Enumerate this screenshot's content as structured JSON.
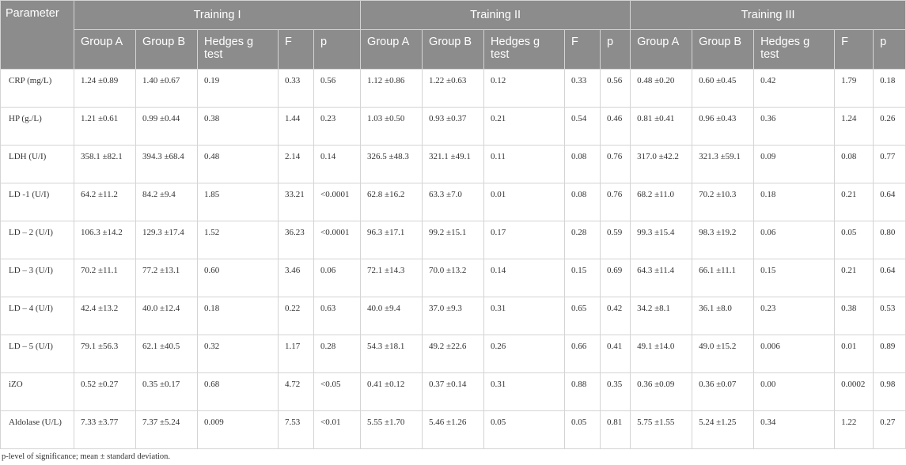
{
  "table": {
    "param_header": "Parameter",
    "groups": [
      "Training I",
      "Training II",
      "Training III"
    ],
    "subheaders": [
      "Group A",
      "Group B",
      "Hedges g test",
      "F",
      "p"
    ],
    "rows": [
      {
        "param": "CRP (mg/L)",
        "cells": [
          [
            "1.24 ±0.89",
            "1.40 ±0.67",
            "0.19",
            "0.33",
            "0.56"
          ],
          [
            "1.12 ±0.86",
            "1.22 ±0.63",
            "0.12",
            "0.33",
            "0.56"
          ],
          [
            "0.48 ±0.20",
            "0.60 ±0.45",
            "0.42",
            "1.79",
            "0.18"
          ]
        ]
      },
      {
        "param": "HP (g./L)",
        "cells": [
          [
            "1.21 ±0.61",
            "0.99 ±0.44",
            "0.38",
            "1.44",
            "0.23"
          ],
          [
            "1.03 ±0.50",
            "0.93 ±0.37",
            "0.21",
            "0.54",
            "0.46"
          ],
          [
            "0.81 ±0.41",
            "0.96 ±0.43",
            "0.36",
            "1.24",
            "0.26"
          ]
        ]
      },
      {
        "param": "LDH (U/I)",
        "cells": [
          [
            "358.1 ±82.1",
            "394.3 ±68.4",
            "0.48",
            "2.14",
            "0.14"
          ],
          [
            "326.5 ±48.3",
            "321.1 ±49.1",
            "0.11",
            "0.08",
            "0.76"
          ],
          [
            "317.0 ±42.2",
            "321.3 ±59.1",
            "0.09",
            "0.08",
            "0.77"
          ]
        ]
      },
      {
        "param": "LD -1 (U/I)",
        "cells": [
          [
            "64.2 ±11.2",
            "84.2 ±9.4",
            "1.85",
            "33.21",
            "<0.0001"
          ],
          [
            "62.8 ±16.2",
            "63.3 ±7.0",
            "0.01",
            "0.08",
            "0.76"
          ],
          [
            "68.2 ±11.0",
            "70.2 ±10.3",
            "0.18",
            "0.21",
            "0.64"
          ]
        ]
      },
      {
        "param": "LD – 2 (U/I)",
        "cells": [
          [
            "106.3 ±14.2",
            "129.3 ±17.4",
            "1.52",
            "36.23",
            "<0.0001"
          ],
          [
            "96.3 ±17.1",
            "99.2 ±15.1",
            "0.17",
            "0.28",
            "0.59"
          ],
          [
            "99.3 ±15.4",
            "98.3 ±19.2",
            "0.06",
            "0.05",
            "0.80"
          ]
        ]
      },
      {
        "param": "LD – 3 (U/I)",
        "cells": [
          [
            "70.2 ±11.1",
            "77.2 ±13.1",
            "0.60",
            "3.46",
            "0.06"
          ],
          [
            "72.1 ±14.3",
            "70.0 ±13.2",
            "0.14",
            "0.15",
            "0.69"
          ],
          [
            "64.3 ±11.4",
            "66.1 ±11.1",
            "0.15",
            "0.21",
            "0.64"
          ]
        ]
      },
      {
        "param": "LD – 4 (U/I)",
        "cells": [
          [
            "42.4 ±13.2",
            "40.0 ±12.4",
            "0.18",
            "0.22",
            "0.63"
          ],
          [
            "40.0 ±9.4",
            "37.0 ±9.3",
            "0.31",
            "0.65",
            "0.42"
          ],
          [
            "34.2 ±8.1",
            "36.1 ±8.0",
            "0.23",
            "0.38",
            "0.53"
          ]
        ]
      },
      {
        "param": "LD – 5 (U/I)",
        "cells": [
          [
            "79.1 ±56.3",
            "62.1 ±40.5",
            "0.32",
            "1.17",
            "0.28"
          ],
          [
            "54.3 ±18.1",
            "49.2 ±22.6",
            "0.26",
            "0.66",
            "0.41"
          ],
          [
            "49.1 ±14.0",
            "49.0 ±15.2",
            "0.006",
            "0.01",
            "0.89"
          ]
        ]
      },
      {
        "param": "iZO",
        "cells": [
          [
            "0.52 ±0.27",
            "0.35 ±0.17",
            "0.68",
            "4.72",
            "<0.05"
          ],
          [
            "0.41 ±0.12",
            "0.37 ±0.14",
            "0.31",
            "0.88",
            "0.35"
          ],
          [
            "0.36 ±0.09",
            "0.36 ±0.07",
            "0.00",
            "0.0002",
            "0.98"
          ]
        ]
      },
      {
        "param": "Aldolase (U/L)",
        "cells": [
          [
            "7.33 ±3.77",
            "7.37 ±5.24",
            "0.009",
            "7.53",
            "<0.01"
          ],
          [
            "5.55 ±1.70",
            "5.46 ±1.26",
            "0.05",
            "0.05",
            "0.81"
          ],
          [
            "5.75 ±1.55",
            "5.24 ±1.25",
            "0.34",
            "1.22",
            "0.27"
          ]
        ]
      }
    ]
  },
  "footnote": "p-level of significance; mean ± standard deviation."
}
